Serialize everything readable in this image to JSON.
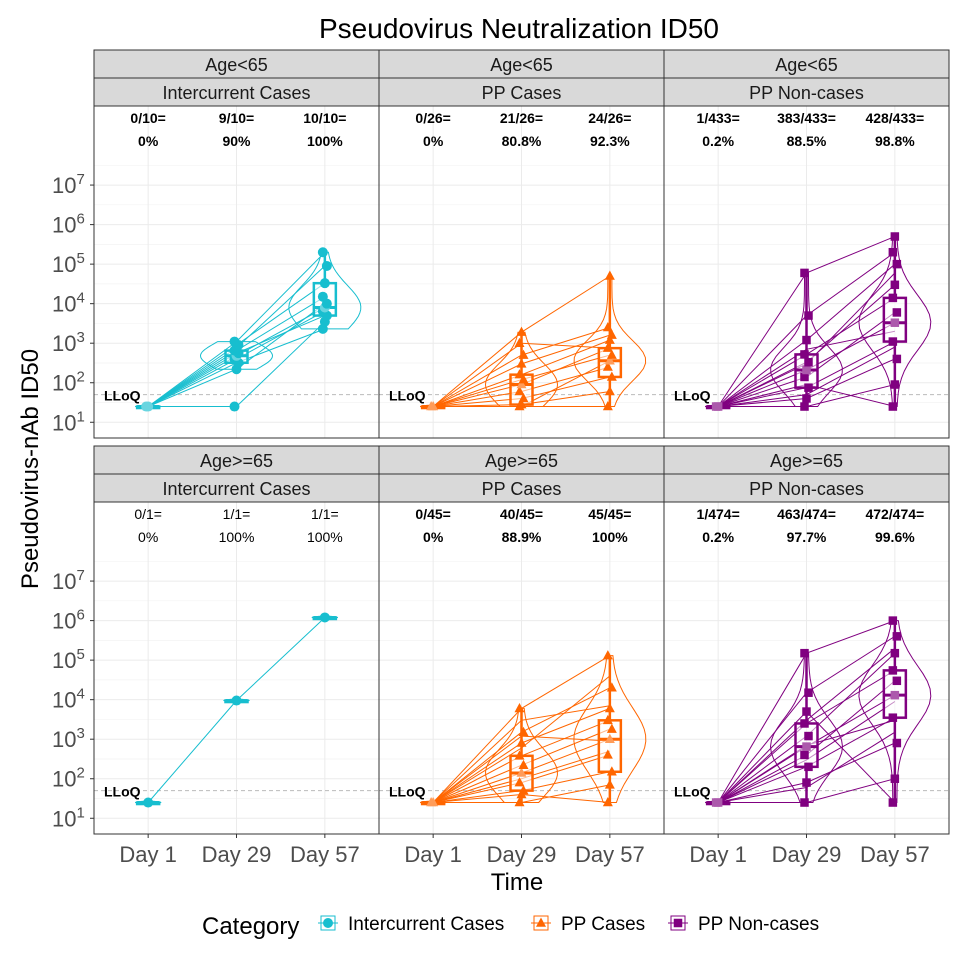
{
  "figure": {
    "title": "Pseudovirus Neutralization ID50",
    "xlabel": "Time",
    "ylabel": "Pseudovirus-nAb ID50",
    "legend_title": "Category",
    "lloq_label": "LLoQ"
  },
  "chart_data": {
    "type": "line",
    "subtype": "faceted violin + box + spaghetti",
    "title": "Pseudovirus Neutralization ID50",
    "xlabel": "Time",
    "ylabel": "Pseudovirus-nAb ID50",
    "x_categories": [
      "Day 1",
      "Day 29",
      "Day 57"
    ],
    "y_scale": "log10",
    "y_ticks": [
      10,
      100,
      1000,
      10000,
      100000,
      1000000,
      10000000
    ],
    "ylim": [
      4,
      1000000000.0
    ],
    "lloq": 50,
    "grid": true,
    "legend_position": "bottom",
    "categories": [
      {
        "name": "Intercurrent Cases",
        "color": "#17becf",
        "marker": "circle"
      },
      {
        "name": "PP Cases",
        "color": "#ff6600",
        "marker": "triangle"
      },
      {
        "name": "PP Non-cases",
        "color": "#800080",
        "marker": "square"
      }
    ],
    "panels": [
      {
        "age": "Age<65",
        "category": "Intercurrent Cases",
        "color": "#17becf",
        "marker": "circle",
        "bold_labels": true,
        "response_labels": [
          [
            "0/10=",
            "0%"
          ],
          [
            "9/10=",
            "90%"
          ],
          [
            "10/10=",
            "100%"
          ]
        ],
        "box": [
          {
            "min": 25,
            "q1": 25,
            "median": 25,
            "q3": 25,
            "max": 25
          },
          {
            "min": 220,
            "q1": 320,
            "median": 480,
            "q3": 650,
            "max": 1100
          },
          {
            "min": 2300,
            "q1": 5000,
            "median": 8000,
            "q3": 33000,
            "max": 200000
          }
        ],
        "points": [
          [
            25,
            25
          ],
          [
            25,
            220,
            320,
            400,
            480,
            560,
            650,
            760,
            900,
            1100
          ],
          [
            2300,
            3500,
            5000,
            6500,
            8000,
            10000,
            15000,
            33000,
            90000,
            200000
          ]
        ],
        "subjects": [
          [
            25,
            480,
            8000
          ],
          [
            25,
            650,
            15000
          ],
          [
            25,
            320,
            2300
          ],
          [
            25,
            900,
            33000
          ],
          [
            25,
            1100,
            200000
          ],
          [
            25,
            560,
            5000
          ],
          [
            25,
            400,
            6500
          ],
          [
            25,
            25,
            3500
          ],
          [
            25,
            760,
            90000
          ],
          [
            25,
            220,
            10000
          ]
        ]
      },
      {
        "age": "Age<65",
        "category": "PP Cases",
        "color": "#ff6600",
        "marker": "triangle",
        "bold_labels": true,
        "response_labels": [
          [
            "0/26=",
            "0%"
          ],
          [
            "21/26=",
            "80.8%"
          ],
          [
            "24/26=",
            "92.3%"
          ]
        ],
        "box": [
          {
            "min": 25,
            "q1": 25,
            "median": 25,
            "q3": 25,
            "max": 25
          },
          {
            "min": 25,
            "q1": 28,
            "median": 90,
            "q3": 160,
            "max": 1900
          },
          {
            "min": 25,
            "q1": 140,
            "median": 360,
            "q3": 750,
            "max": 50000
          }
        ],
        "points": [
          [
            25,
            25
          ],
          [
            25,
            28,
            40,
            60,
            90,
            120,
            160,
            300,
            500,
            1000,
            1900
          ],
          [
            25,
            60,
            140,
            250,
            360,
            500,
            750,
            1200,
            1600,
            2500,
            50000
          ]
        ],
        "subjects": [
          [
            25,
            25,
            360
          ],
          [
            25,
            90,
            750
          ],
          [
            25,
            160,
            1200
          ],
          [
            25,
            1900,
            50000
          ],
          [
            25,
            40,
            140
          ],
          [
            25,
            60,
            250
          ],
          [
            25,
            120,
            500
          ],
          [
            25,
            300,
            1600
          ],
          [
            25,
            25,
            25
          ],
          [
            25,
            500,
            2500
          ],
          [
            25,
            1000,
            750
          ],
          [
            25,
            28,
            60
          ]
        ]
      },
      {
        "age": "Age<65",
        "category": "PP Non-cases",
        "color": "#800080",
        "marker": "square",
        "bold_labels": true,
        "response_labels": [
          [
            "1/433=",
            "0.2%"
          ],
          [
            "383/433=",
            "88.5%"
          ],
          [
            "428/433=",
            "98.8%"
          ]
        ],
        "box": [
          {
            "min": 25,
            "q1": 25,
            "median": 25,
            "q3": 25,
            "max": 25
          },
          {
            "min": 25,
            "q1": 75,
            "median": 210,
            "q3": 520,
            "max": 60000
          },
          {
            "min": 25,
            "q1": 1100,
            "median": 3300,
            "q3": 14000,
            "max": 500000
          }
        ],
        "points": [
          [
            25,
            25
          ],
          [
            25,
            40,
            75,
            140,
            210,
            330,
            520,
            1200,
            5000,
            60000
          ],
          [
            25,
            90,
            400,
            1100,
            3300,
            6000,
            14000,
            30000,
            100000,
            200000,
            500000
          ]
        ],
        "subjects": [
          [
            25,
            210,
            3300
          ],
          [
            25,
            520,
            14000
          ],
          [
            25,
            75,
            1100
          ],
          [
            25,
            1200,
            100000
          ],
          [
            25,
            5000,
            200000
          ],
          [
            25,
            40,
            400
          ],
          [
            25,
            140,
            6000
          ],
          [
            25,
            330,
            30000
          ],
          [
            25,
            25,
            90
          ],
          [
            25,
            60000,
            500000
          ],
          [
            25,
            90,
            25
          ],
          [
            25,
            700,
            2000
          ],
          [
            25,
            300,
            60000
          ],
          [
            25,
            50,
            800
          ]
        ]
      },
      {
        "age": "Age>=65",
        "category": "Intercurrent Cases",
        "color": "#17becf",
        "marker": "circle",
        "bold_labels": false,
        "response_labels": [
          [
            "0/1=",
            "0%"
          ],
          [
            "1/1=",
            "100%"
          ],
          [
            "1/1=",
            "100%"
          ]
        ],
        "box": [
          {
            "min": 25,
            "q1": 25,
            "median": 25,
            "q3": 25,
            "max": 25
          },
          {
            "min": 9500,
            "q1": 9500,
            "median": 9500,
            "q3": 9500,
            "max": 9500
          },
          {
            "min": 1200000,
            "q1": 1200000,
            "median": 1200000,
            "q3": 1200000,
            "max": 1200000
          }
        ],
        "points": [
          [
            25
          ],
          [
            9500
          ],
          [
            1200000
          ]
        ],
        "subjects": [
          [
            25,
            9500,
            1200000
          ]
        ]
      },
      {
        "age": "Age>=65",
        "category": "PP Cases",
        "color": "#ff6600",
        "marker": "triangle",
        "bold_labels": true,
        "response_labels": [
          [
            "0/45=",
            "0%"
          ],
          [
            "40/45=",
            "88.9%"
          ],
          [
            "45/45=",
            "100%"
          ]
        ],
        "box": [
          {
            "min": 25,
            "q1": 25,
            "median": 25,
            "q3": 25,
            "max": 25
          },
          {
            "min": 25,
            "q1": 50,
            "median": 140,
            "q3": 380,
            "max": 6000
          },
          {
            "min": 25,
            "q1": 150,
            "median": 1000,
            "q3": 3000,
            "max": 130000
          }
        ],
        "points": [
          [
            25,
            25
          ],
          [
            25,
            40,
            50,
            80,
            140,
            220,
            380,
            800,
            1500,
            6000
          ],
          [
            25,
            70,
            150,
            400,
            1000,
            1800,
            3000,
            6000,
            20000,
            130000
          ]
        ],
        "subjects": [
          [
            25,
            140,
            1000
          ],
          [
            25,
            380,
            3000
          ],
          [
            25,
            50,
            150
          ],
          [
            25,
            6000,
            130000
          ],
          [
            25,
            1500,
            20000
          ],
          [
            25,
            80,
            400
          ],
          [
            25,
            220,
            1800
          ],
          [
            25,
            800,
            6000
          ],
          [
            25,
            25,
            70
          ],
          [
            25,
            40,
            25
          ],
          [
            25,
            1200,
            900
          ],
          [
            25,
            3000,
            7000
          ],
          [
            25,
            100,
            500
          ],
          [
            25,
            600,
            40000
          ]
        ]
      },
      {
        "age": "Age>=65",
        "category": "PP Non-cases",
        "color": "#800080",
        "marker": "square",
        "bold_labels": true,
        "response_labels": [
          [
            "1/474=",
            "0.2%"
          ],
          [
            "463/474=",
            "97.7%"
          ],
          [
            "472/474=",
            "99.6%"
          ]
        ],
        "box": [
          {
            "min": 25,
            "q1": 25,
            "median": 25,
            "q3": 25,
            "max": 25
          },
          {
            "min": 25,
            "q1": 200,
            "median": 650,
            "q3": 2500,
            "max": 150000
          },
          {
            "min": 25,
            "q1": 3500,
            "median": 13000,
            "q3": 55000,
            "max": 1000000
          }
        ],
        "points": [
          [
            25,
            25
          ],
          [
            25,
            80,
            200,
            400,
            650,
            1200,
            2500,
            5000,
            15000,
            150000
          ],
          [
            25,
            100,
            800,
            3500,
            13000,
            30000,
            55000,
            150000,
            400000,
            1000000
          ]
        ],
        "subjects": [
          [
            25,
            650,
            13000
          ],
          [
            25,
            2500,
            55000
          ],
          [
            25,
            200,
            3500
          ],
          [
            25,
            15000,
            400000
          ],
          [
            25,
            150000,
            1000000
          ],
          [
            25,
            80,
            800
          ],
          [
            25,
            400,
            30000
          ],
          [
            25,
            1200,
            150000
          ],
          [
            25,
            25,
            100
          ],
          [
            25,
            5000,
            25
          ],
          [
            25,
            700,
            3000
          ],
          [
            25,
            3000,
            200000
          ],
          [
            25,
            300,
            9000
          ],
          [
            25,
            60,
            1500
          ]
        ]
      }
    ]
  }
}
